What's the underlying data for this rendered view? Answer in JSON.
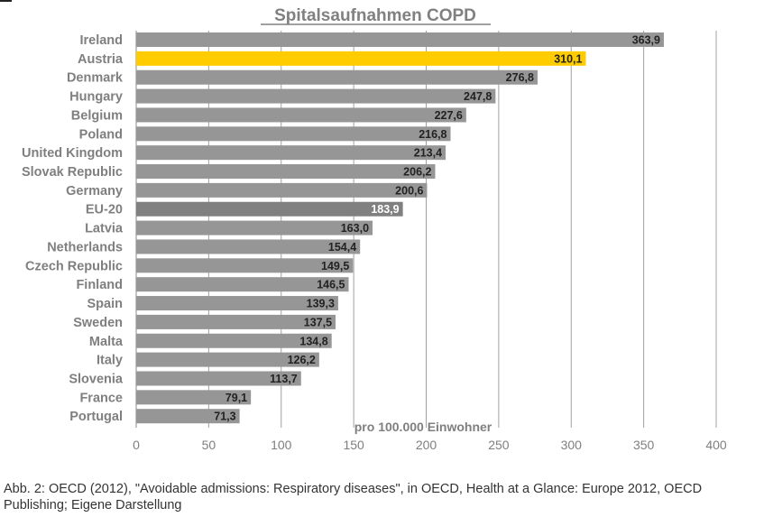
{
  "chart_data": {
    "type": "bar",
    "orientation": "horizontal",
    "title": "Spitalsaufnahmen COPD",
    "xlabel": "pro 100.000 Einwohner",
    "xlim": [
      0,
      400
    ],
    "xticks": [
      0,
      50,
      100,
      150,
      200,
      250,
      300,
      350,
      400
    ],
    "grid": "vertical",
    "legend": "none",
    "categories": [
      "Ireland",
      "Austria",
      "Denmark",
      "Hungary",
      "Belgium",
      "Poland",
      "United Kingdom",
      "Slovak Republic",
      "Germany",
      "EU-20",
      "Latvia",
      "Netherlands",
      "Czech Republic",
      "Finland",
      "Spain",
      "Sweden",
      "Malta",
      "Italy",
      "Slovenia",
      "France",
      "Portugal"
    ],
    "values": [
      363.9,
      310.1,
      276.8,
      247.8,
      227.6,
      216.8,
      213.4,
      206.2,
      200.6,
      183.9,
      163.0,
      154.4,
      149.5,
      146.5,
      139.3,
      137.5,
      134.8,
      126.2,
      113.7,
      79.1,
      71.3
    ],
    "value_labels": [
      "363,9",
      "310,1",
      "276,8",
      "247,8",
      "227,6",
      "216,8",
      "213,4",
      "206,2",
      "200,6",
      "183,9",
      "163,0",
      "154,4",
      "149,5",
      "146,5",
      "139,3",
      "137,5",
      "134,8",
      "126,2",
      "113,7",
      "79,1",
      "71,3"
    ],
    "highlight": {
      "Austria": "#ffcc00",
      "EU-20": "#808080"
    },
    "colors": {
      "bar": "#969696",
      "grid": "#a0a0a0",
      "text": "#7f7f7f"
    }
  },
  "caption": "Abb. 2: OECD (2012), \"Avoidable admissions: Respiratory diseases\", in OECD, Health at a Glance: Europe 2012, OECD Publishing; Eigene Darstellung"
}
